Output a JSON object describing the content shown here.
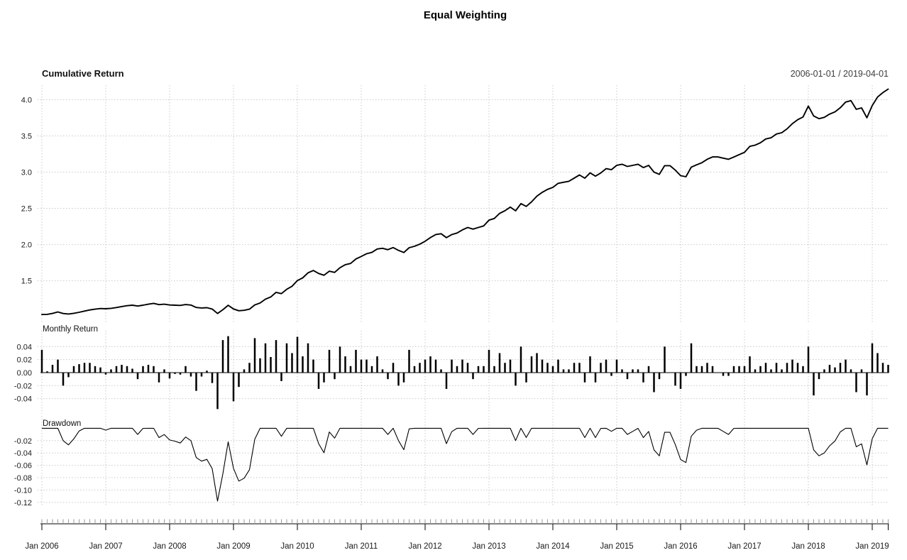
{
  "title": "Equal Weighting",
  "panels": {
    "cumulative": {
      "label": "Cumulative Return",
      "date_range": "2006-01-01 / 2019-04-01",
      "yticks": [
        "4.0",
        "3.5",
        "3.0",
        "2.5",
        "2.0",
        "1.5"
      ]
    },
    "monthly": {
      "label": "Monthly Return",
      "yticks": [
        "0.04",
        "0.02",
        "0.00",
        "-0.02",
        "-0.04"
      ]
    },
    "drawdown": {
      "label": "Drawdown",
      "yticks": [
        "-0.02",
        "-0.04",
        "-0.06",
        "-0.08",
        "-0.10",
        "-0.12"
      ]
    }
  },
  "x_axis": {
    "tick_labels": [
      "Jan 2006",
      "Jan 2007",
      "Jan 2008",
      "Jan 2009",
      "Jan 2010",
      "Jan 2011",
      "Jan 2012",
      "Jan 2013",
      "Jan 2014",
      "Jan 2015",
      "Jan 2016",
      "Jan 2017",
      "Jan 2018",
      "Jan 2019"
    ],
    "start_month": "2006-01",
    "end_month": "2019-04",
    "frequency": "monthly"
  },
  "colors": {
    "series": "#000000",
    "grid": "#c9c9c9",
    "axis": "#000000",
    "minor_tick": "#9a9a9a",
    "secondary_text": "#3d3d3d"
  },
  "chart_data": [
    {
      "type": "line",
      "title": "Cumulative Return",
      "xlabel": "",
      "ylabel": "",
      "ylim": [
        1.0,
        4.15
      ],
      "grid": true,
      "legend": "none",
      "derived_from": "monthly_returns",
      "formula": "wealth[i] = cumprod(1 + monthly_returns)[i], starting at 1.0 before Jan 2006",
      "start_value": 1.035,
      "end_value": 4.12
    },
    {
      "type": "bar",
      "title": "Monthly Return",
      "xlabel": "",
      "ylabel": "",
      "ylim": [
        -0.06,
        0.062
      ],
      "grid": true,
      "legend": "none",
      "x_start": "2006-01",
      "values": [
        0.035,
        0.002,
        0.012,
        0.02,
        -0.02,
        -0.007,
        0.01,
        0.013,
        0.015,
        0.015,
        0.01,
        0.008,
        -0.003,
        0.005,
        0.01,
        0.012,
        0.01,
        0.006,
        -0.01,
        0.01,
        0.012,
        0.01,
        -0.015,
        0.005,
        -0.009,
        -0.002,
        -0.003,
        0.01,
        -0.006,
        -0.028,
        -0.006,
        0.003,
        -0.016,
        -0.056,
        0.05,
        0.056,
        -0.044,
        -0.022,
        0.005,
        0.015,
        0.053,
        0.022,
        0.045,
        0.024,
        0.05,
        -0.013,
        0.045,
        0.03,
        0.055,
        0.025,
        0.045,
        0.02,
        -0.025,
        -0.015,
        0.035,
        -0.01,
        0.04,
        0.025,
        0.01,
        0.035,
        0.02,
        0.02,
        0.01,
        0.025,
        0.005,
        -0.01,
        0.015,
        -0.02,
        -0.015,
        0.035,
        0.01,
        0.015,
        0.02,
        0.025,
        0.02,
        0.005,
        -0.025,
        0.02,
        0.01,
        0.02,
        0.015,
        -0.01,
        0.01,
        0.01,
        0.035,
        0.01,
        0.03,
        0.015,
        0.02,
        -0.02,
        0.04,
        -0.015,
        0.025,
        0.03,
        0.02,
        0.015,
        0.01,
        0.02,
        0.005,
        0.005,
        0.015,
        0.015,
        -0.015,
        0.025,
        -0.015,
        0.015,
        0.02,
        -0.005,
        0.02,
        0.005,
        -0.01,
        0.005,
        0.005,
        -0.015,
        0.01,
        -0.03,
        -0.01,
        0.04,
        0.0,
        -0.02,
        -0.025,
        -0.005,
        0.045,
        0.01,
        0.01,
        0.015,
        0.01,
        0.0,
        -0.005,
        -0.005,
        0.01,
        0.01,
        0.01,
        0.025,
        0.005,
        0.01,
        0.015,
        0.005,
        0.015,
        0.005,
        0.015,
        0.02,
        0.015,
        0.01,
        0.04,
        -0.035,
        -0.01,
        0.005,
        0.012,
        0.008,
        0.015,
        0.02,
        0.005,
        -0.03,
        0.005,
        -0.035,
        0.045,
        0.03,
        0.015,
        0.012
      ]
    },
    {
      "type": "line",
      "title": "Drawdown",
      "xlabel": "",
      "ylabel": "",
      "ylim": [
        -0.125,
        0
      ],
      "grid": true,
      "legend": "none",
      "derived_from": "monthly_returns",
      "formula": "drawdown[i] = wealth[i]/cummax(wealth)[i] - 1",
      "min_value": -0.118,
      "min_at": "2008-10"
    }
  ]
}
